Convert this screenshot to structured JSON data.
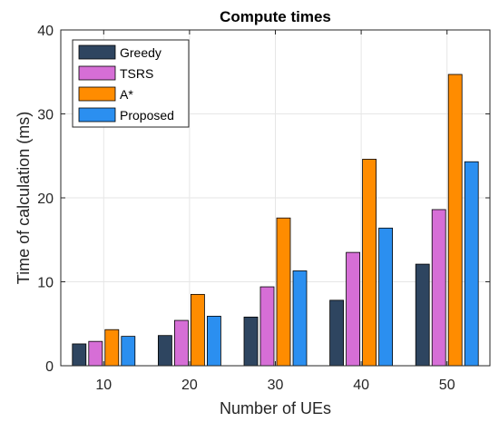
{
  "chart_data": {
    "type": "bar",
    "title": "Compute times",
    "xlabel": "Number of UEs",
    "ylabel": "Time of calculation (ms)",
    "categories": [
      "10",
      "20",
      "30",
      "40",
      "50"
    ],
    "ylim": [
      0,
      40
    ],
    "yticks": [
      "0",
      "10",
      "20",
      "30",
      "40"
    ],
    "grid": true,
    "legend_position": "top-left",
    "series": [
      {
        "name": "Greedy",
        "color": "#2e4560",
        "values": [
          2.6,
          3.6,
          5.8,
          7.8,
          12.1
        ]
      },
      {
        "name": "TSRS",
        "color": "#d66ed6",
        "values": [
          2.9,
          5.4,
          9.4,
          13.5,
          18.6
        ]
      },
      {
        "name": "A*",
        "color": "#ff8c00",
        "values": [
          4.3,
          8.5,
          17.6,
          24.6,
          34.7
        ]
      },
      {
        "name": "Proposed",
        "color": "#2b8ff0",
        "values": [
          3.5,
          5.9,
          11.3,
          16.4,
          24.3
        ]
      }
    ]
  }
}
